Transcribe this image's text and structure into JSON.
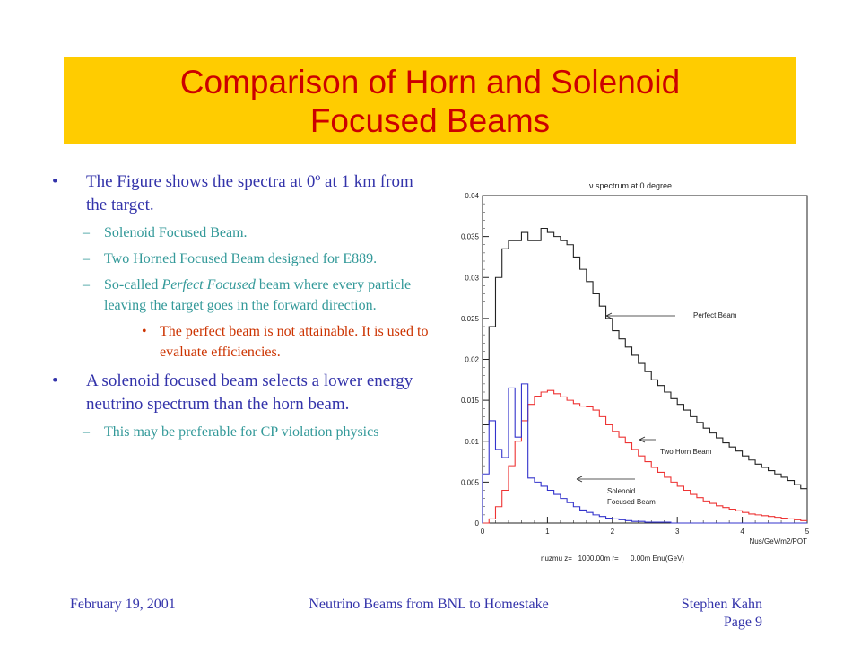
{
  "slide": {
    "title_line1": "Comparison of Horn and Solenoid",
    "title_line2": "Focused Beams"
  },
  "bullets": {
    "b1_pre": "The Figure shows the spectra at 0",
    "b1_deg": "º",
    "b1_post": " at 1 km from the target.",
    "s1": "Solenoid Focused Beam.",
    "s2": "Two Horned Focused Beam designed for E889.",
    "s3_pre": "So-called ",
    "s3_em": "Perfect Focused",
    "s3_post": " beam where every particle leaving the target goes in the forward direction.",
    "s3a": "The perfect beam is not attainable. It is used to evaluate efficiencies.",
    "b2": "A solenoid focused beam selects a lower energy neutrino spectrum than the horn beam.",
    "s4": "This may be preferable for CP violation physics",
    "bullet_mark": "•",
    "dash_mark": "–"
  },
  "footer": {
    "date": "February 19, 2001",
    "center": "Neutrino Beams from BNL to Homestake",
    "author": "Stephen Kahn",
    "page": "Page 9"
  },
  "colors": {
    "title_bg": "#ffcc00",
    "title_text": "#cc0000",
    "bullet_l1": "#3333aa",
    "bullet_l2": "#339999",
    "bullet_l3": "#cc3300",
    "perfect": "#222222",
    "horn": "#ee3333",
    "solenoid": "#3333cc"
  },
  "chart_data": {
    "type": "line",
    "title": "ν spectrum at 0 degree",
    "xlabel": "Nus/GeV/m2/POT",
    "ylabel": "",
    "xlim": [
      0,
      5
    ],
    "ylim": [
      0,
      0.04
    ],
    "x_ticks": [
      "0",
      "1",
      "2",
      "3",
      "4",
      "5"
    ],
    "y_ticks": [
      "0",
      "0.005",
      "0.01",
      "0.015",
      "0.02",
      "0.025",
      "0.03",
      "0.035",
      "0.04"
    ],
    "info": "nuzmu z=   1000.00m r=      0.00m Enu(GeV)",
    "annotations": [
      "Perfect Beam",
      "Two Horn Beam",
      "Solenoid",
      "Focused Beam"
    ],
    "bin_width": 0.1,
    "series": [
      {
        "name": "Perfect Beam",
        "values": [
          0.012,
          0.024,
          0.03,
          0.0335,
          0.0345,
          0.0345,
          0.0355,
          0.0345,
          0.0345,
          0.036,
          0.0355,
          0.035,
          0.0345,
          0.034,
          0.0325,
          0.031,
          0.0295,
          0.028,
          0.0265,
          0.025,
          0.0235,
          0.0225,
          0.0215,
          0.0205,
          0.0195,
          0.0185,
          0.0175,
          0.0168,
          0.016,
          0.0152,
          0.0145,
          0.0138,
          0.013,
          0.0123,
          0.0116,
          0.011,
          0.0104,
          0.0098,
          0.0093,
          0.0088,
          0.0082,
          0.0077,
          0.0072,
          0.0068,
          0.0064,
          0.006,
          0.0056,
          0.0052,
          0.0047,
          0.0042
        ]
      },
      {
        "name": "Two Horn Beam",
        "values": [
          0.0,
          0.0005,
          0.002,
          0.004,
          0.007,
          0.01,
          0.0125,
          0.0145,
          0.0155,
          0.016,
          0.0162,
          0.0158,
          0.0154,
          0.015,
          0.0146,
          0.0143,
          0.0142,
          0.0138,
          0.013,
          0.012,
          0.0112,
          0.0105,
          0.0098,
          0.009,
          0.0082,
          0.0075,
          0.0068,
          0.0062,
          0.0056,
          0.005,
          0.0045,
          0.004,
          0.0035,
          0.0031,
          0.0027,
          0.0024,
          0.0021,
          0.0019,
          0.0017,
          0.0015,
          0.0013,
          0.0011,
          0.001,
          0.0009,
          0.0008,
          0.0007,
          0.0006,
          0.0005,
          0.0004,
          0.0003
        ]
      },
      {
        "name": "Solenoid Focused Beam",
        "values": [
          0.006,
          0.0125,
          0.009,
          0.008,
          0.0165,
          0.0105,
          0.017,
          0.0055,
          0.005,
          0.0045,
          0.004,
          0.0035,
          0.003,
          0.0025,
          0.002,
          0.0016,
          0.0013,
          0.001,
          0.0008,
          0.0006,
          0.0005,
          0.0004,
          0.0003,
          0.0002,
          0.0002,
          0.0001,
          0.0001,
          0.0001,
          0.0001,
          0.0,
          0.0,
          0.0,
          0.0,
          0.0,
          0.0,
          0.0,
          0.0,
          0.0,
          0.0,
          0.0,
          0.0,
          0.0,
          0.0,
          0.0,
          0.0,
          0.0,
          0.0,
          0.0,
          0.0,
          0.0
        ]
      }
    ]
  }
}
